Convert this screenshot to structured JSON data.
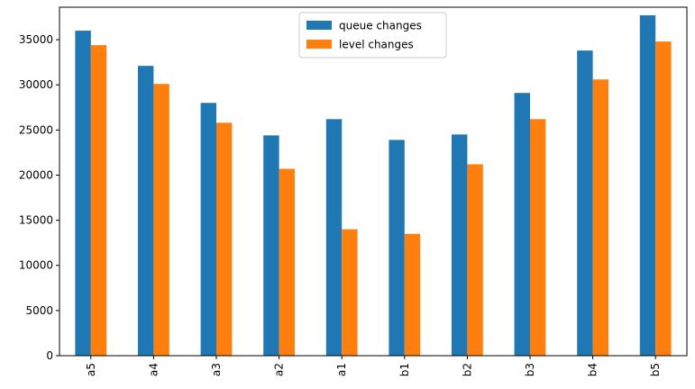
{
  "chart_data": {
    "type": "bar",
    "title": "",
    "xlabel": "",
    "ylabel": "",
    "categories": [
      "a5",
      "a4",
      "a3",
      "a2",
      "a1",
      "b1",
      "b2",
      "b3",
      "b4",
      "b5"
    ],
    "series": [
      {
        "name": "queue changes",
        "color": "#1f77b4",
        "values": [
          36000,
          32100,
          28000,
          24400,
          26200,
          23900,
          24500,
          29100,
          33800,
          37700
        ]
      },
      {
        "name": "level changes",
        "color": "#ff7f0e",
        "values": [
          34400,
          30100,
          25800,
          20700,
          14000,
          13500,
          21200,
          26200,
          30600,
          34800
        ]
      }
    ],
    "ylim": [
      0,
      38600
    ],
    "yticks": [
      0,
      5000,
      10000,
      15000,
      20000,
      25000,
      30000,
      35000
    ],
    "grid": false,
    "legend_position": "top-center"
  }
}
